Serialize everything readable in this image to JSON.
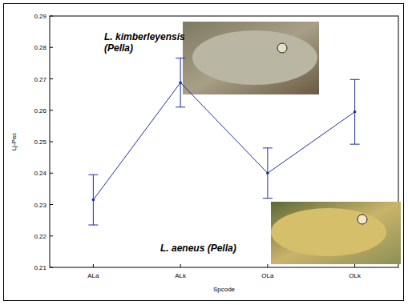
{
  "chart_data": {
    "type": "line",
    "x_label": "Spcode",
    "y_label": "Lj-Pec",
    "categories": [
      "ALa",
      "ALk",
      "OLa",
      "OLk"
    ],
    "values": [
      0.2315,
      0.2688,
      0.24,
      0.2595
    ],
    "errors": [
      0.008,
      0.0078,
      0.008,
      0.0103
    ],
    "color": "#1f2fa0",
    "marker": "point",
    "ylim": [
      0.21,
      0.29
    ],
    "yticks": [
      0.21,
      0.22,
      0.23,
      0.24,
      0.25,
      0.26,
      0.27,
      0.28,
      0.29
    ],
    "grid": false,
    "annotations": [
      "L. kimberleyensis",
      "(Pella)",
      "L. aeneus (Pella)"
    ]
  }
}
